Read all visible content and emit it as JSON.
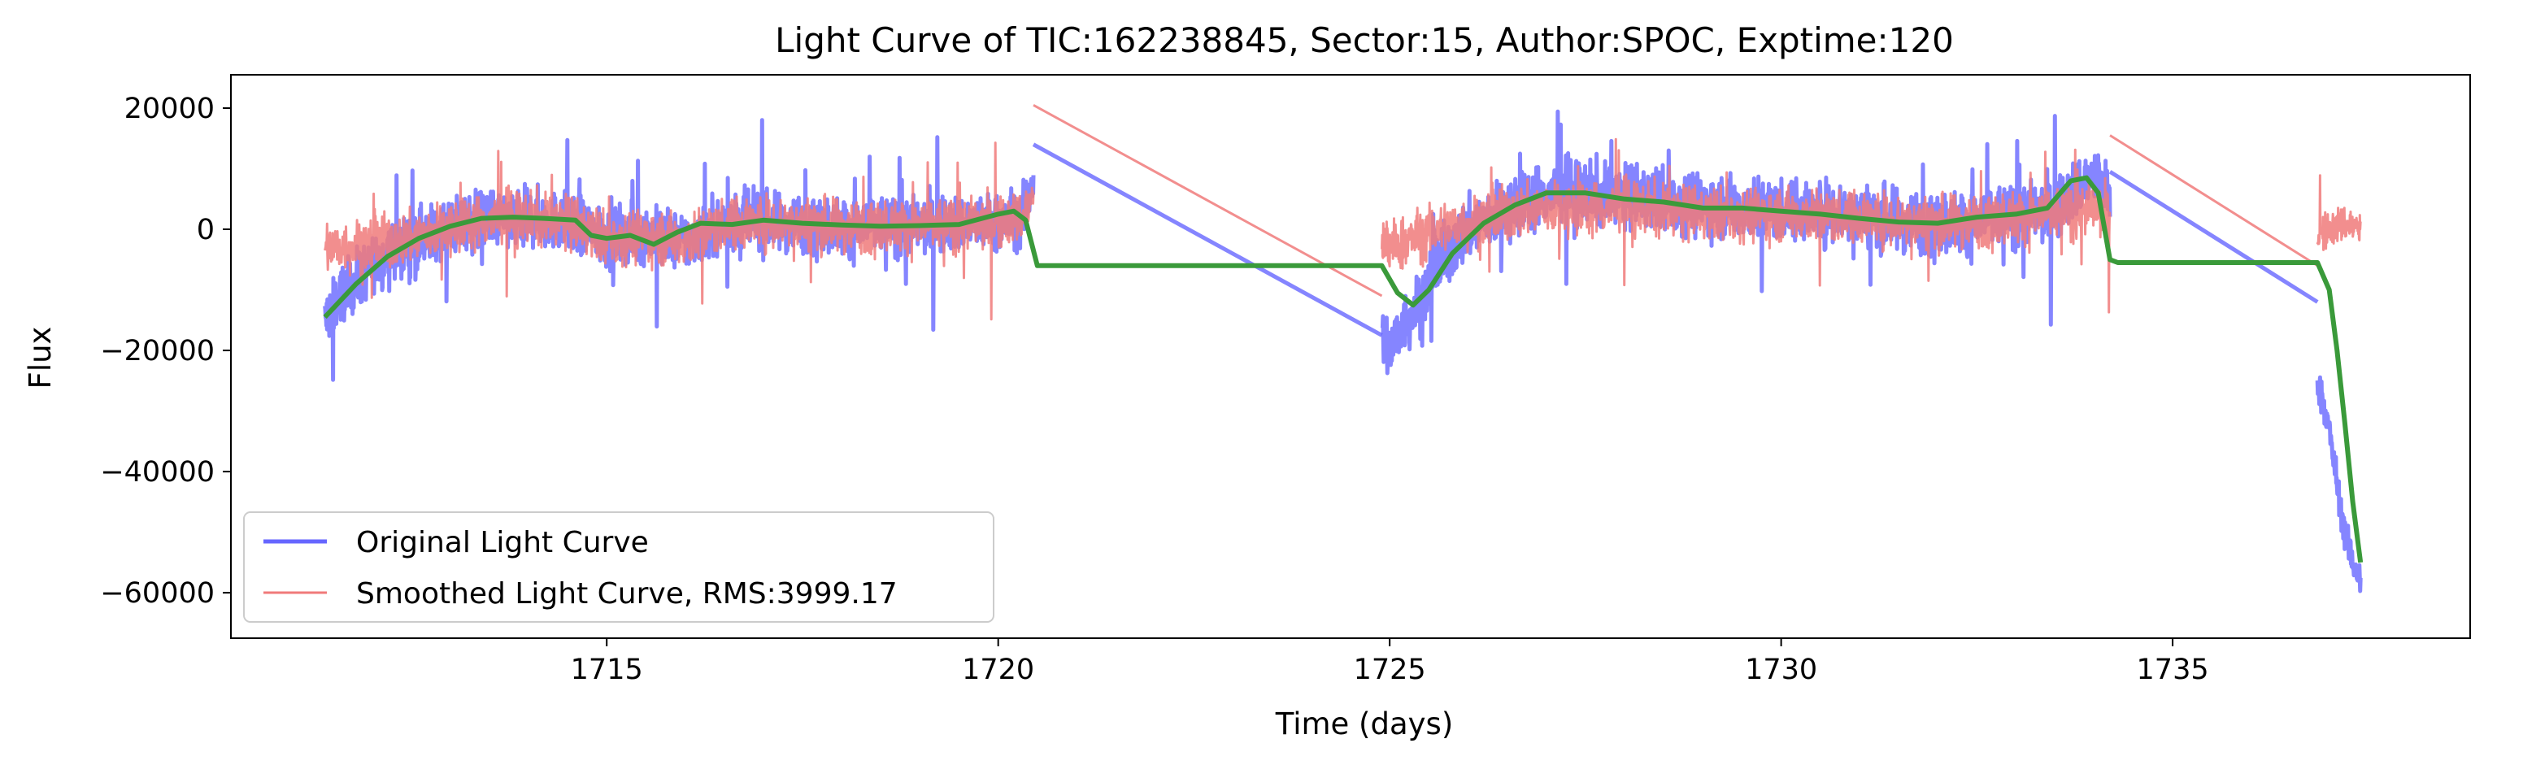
{
  "chart_data": {
    "type": "line",
    "title": "Light Curve of TIC:162238845, Sector:15, Author:SPOC, Exptime:120",
    "xlabel": "Time (days)",
    "ylabel": "Flux",
    "xlim": [
      1710.2,
      1738.8
    ],
    "ylim": [
      -67500,
      25500
    ],
    "xticks": [
      1715,
      1720,
      1725,
      1730,
      1735
    ],
    "yticks": [
      20000,
      0,
      -20000,
      -40000,
      -60000
    ],
    "xtick_labels": [
      "1715",
      "1720",
      "1725",
      "1730",
      "1735"
    ],
    "ytick_labels": [
      "20000",
      "0",
      "−20000",
      "−40000",
      "−60000"
    ],
    "grid": false,
    "legend_position": "lower-left",
    "series": [
      {
        "name": "Original Light Curve",
        "color": "#6666ff",
        "segments": [
          {
            "x": [
              1711.4,
              1711.6,
              1712.0,
              1712.5,
              1713.0,
              1713.5,
              1714.0,
              1714.5,
              1715.0,
              1715.5,
              1716.0,
              1716.5,
              1717.0,
              1717.5,
              1718.0,
              1718.5,
              1719.0,
              1719.5,
              1720.0,
              1720.3,
              1720.45
            ],
            "y": [
              -15000,
              -11000,
              -6000,
              -2000,
              500,
              1500,
              1800,
              1200,
              -1500,
              -1000,
              -2000,
              800,
              1200,
              1000,
              500,
              700,
              600,
              800,
              1000,
              2000,
              8000
            ],
            "noise": 6000
          },
          {
            "x": [
              1724.9,
              1725.0,
              1725.2,
              1725.4,
              1725.6,
              1726.0,
              1726.5,
              1727.0,
              1727.5,
              1728.0,
              1728.5,
              1729.0,
              1729.5,
              1730.0,
              1730.5,
              1731.0,
              1731.5,
              1732.0,
              1732.5,
              1733.0,
              1733.5,
              1733.8,
              1734.0,
              1734.2
            ],
            "y": [
              -18000,
              -20000,
              -15000,
              -12000,
              -6000,
              0,
              3500,
              6000,
              6000,
              5500,
              5000,
              4000,
              3500,
              3200,
              3000,
              2500,
              1500,
              1000,
              1500,
              2500,
              3000,
              7000,
              8500,
              5000
            ],
            "noise": 6500
          },
          {
            "x": [
              1736.85,
              1737.0,
              1737.1,
              1737.2,
              1737.3,
              1737.4
            ],
            "y": [
              -25000,
              -33000,
              -42000,
              -50000,
              -55000,
              -58000
            ],
            "noise": 3500
          }
        ],
        "links": [
          {
            "x": [
              1720.45,
              1724.9
            ],
            "y": [
              14000,
              -17500
            ]
          },
          {
            "x": [
              1734.2,
              1736.85
            ],
            "y": [
              9500,
              -12000
            ]
          }
        ]
      },
      {
        "name": "Smoothed Light Curve, RMS:3999.17",
        "color": "#f07a7a",
        "segments": [
          {
            "x": [
              1711.4,
              1711.6,
              1712.0,
              1712.5,
              1713.0,
              1713.5,
              1714.0,
              1714.5,
              1715.0,
              1715.5,
              1716.0,
              1716.5,
              1717.0,
              1717.5,
              1718.0,
              1718.5,
              1719.0,
              1719.5,
              1720.0,
              1720.3,
              1720.45
            ],
            "y": [
              -3000,
              -3000,
              -2500,
              -1500,
              500,
              1500,
              1800,
              1200,
              -1500,
              -1000,
              -2000,
              800,
              1200,
              1000,
              500,
              700,
              600,
              800,
              1000,
              2000,
              5000
            ],
            "noise": 5500
          },
          {
            "x": [
              1724.9,
              1725.0,
              1725.2,
              1725.4,
              1725.6,
              1726.0,
              1726.5,
              1727.0,
              1727.5,
              1728.0,
              1728.5,
              1729.0,
              1729.5,
              1730.0,
              1730.5,
              1731.0,
              1731.5,
              1732.0,
              1732.5,
              1733.0,
              1733.5,
              1733.8,
              1734.0,
              1734.2
            ],
            "y": [
              -2000,
              -3000,
              -2000,
              -1000,
              0,
              1000,
              2500,
              3500,
              3500,
              3500,
              3000,
              2500,
              2500,
              2500,
              2200,
              2000,
              1500,
              1000,
              1500,
              2000,
              2500,
              3000,
              3500,
              2000
            ],
            "noise": 5500
          },
          {
            "x": [
              1736.85,
              1737.0,
              1737.2,
              1737.4
            ],
            "y": [
              -1000,
              0,
              1000,
              0
            ],
            "noise": 4000
          }
        ],
        "links": [
          {
            "x": [
              1720.45,
              1724.9
            ],
            "y": [
              20500,
              -11000
            ]
          },
          {
            "x": [
              1734.2,
              1736.85
            ],
            "y": [
              15500,
              -6000
            ]
          }
        ]
      },
      {
        "name": "",
        "color": "#3a9a3a",
        "x": [
          1711.4,
          1711.8,
          1712.2,
          1712.6,
          1713.0,
          1713.4,
          1713.8,
          1714.2,
          1714.6,
          1714.8,
          1715.0,
          1715.3,
          1715.6,
          1715.9,
          1716.2,
          1716.6,
          1717.0,
          1717.5,
          1718.0,
          1718.5,
          1719.0,
          1719.5,
          1720.0,
          1720.2,
          1720.35,
          1720.5,
          1724.9,
          1725.1,
          1725.3,
          1725.5,
          1725.8,
          1726.2,
          1726.6,
          1727.0,
          1727.5,
          1728.0,
          1728.5,
          1729.0,
          1729.5,
          1730.0,
          1730.5,
          1731.0,
          1731.5,
          1732.0,
          1732.5,
          1733.0,
          1733.4,
          1733.7,
          1733.9,
          1734.05,
          1734.2,
          1734.3,
          1736.85,
          1737.0,
          1737.1,
          1737.2,
          1737.3,
          1737.4
        ],
        "y": [
          -14500,
          -9000,
          -4500,
          -1500,
          500,
          1800,
          2000,
          1800,
          1500,
          -1000,
          -1500,
          -1000,
          -2500,
          -500,
          1000,
          800,
          1500,
          1000,
          700,
          500,
          600,
          800,
          2500,
          3000,
          1500,
          -6000,
          -6000,
          -10500,
          -12500,
          -10000,
          -4000,
          1000,
          4000,
          6000,
          6000,
          5000,
          4500,
          3500,
          3500,
          3000,
          2500,
          1800,
          1200,
          1000,
          2000,
          2500,
          3500,
          8000,
          8500,
          6000,
          -5000,
          -5500,
          -5500,
          -10000,
          -20000,
          -32000,
          -45000,
          -55000
        ]
      }
    ]
  }
}
